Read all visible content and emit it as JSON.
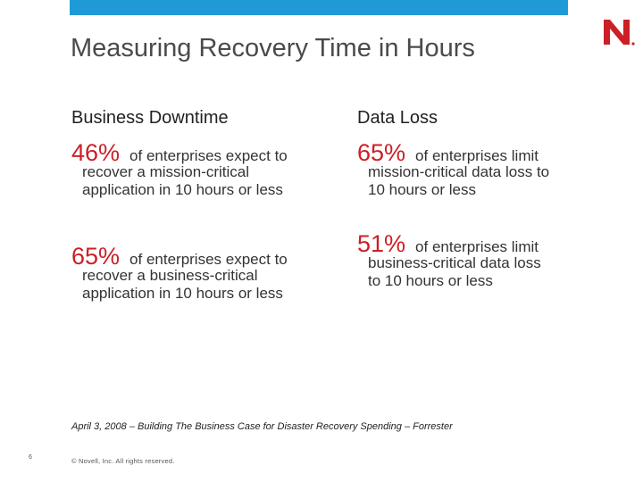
{
  "title": "Measuring Recovery Time in Hours",
  "columns": [
    {
      "heading": "Business Downtime",
      "stats": [
        {
          "percent": "46%",
          "lead": "of enterprises expect to",
          "rest": "recover a mission-critical\napplication in 10 hours or less"
        },
        {
          "percent": "65%",
          "lead": "of enterprises expect to",
          "rest": "recover a business-critical\napplication in 10 hours or less"
        }
      ]
    },
    {
      "heading": "Data Loss",
      "stats": [
        {
          "percent": "65%",
          "lead": "of enterprises limit",
          "rest": "mission-critical data loss to\n10 hours or less"
        },
        {
          "percent": "51%",
          "lead": "of enterprises limit",
          "rest": "business-critical data loss\nto 10 hours or less"
        }
      ]
    }
  ],
  "footnote": "April 3, 2008 – Building The Business Case for Disaster Recovery Spending – Forrester",
  "page_number": "6",
  "copyright": "© Novell, Inc. All rights reserved.",
  "colors": {
    "accent_bar": "#1f9ad7",
    "percent": "#cc1f26",
    "logo": "#cc1f26"
  }
}
